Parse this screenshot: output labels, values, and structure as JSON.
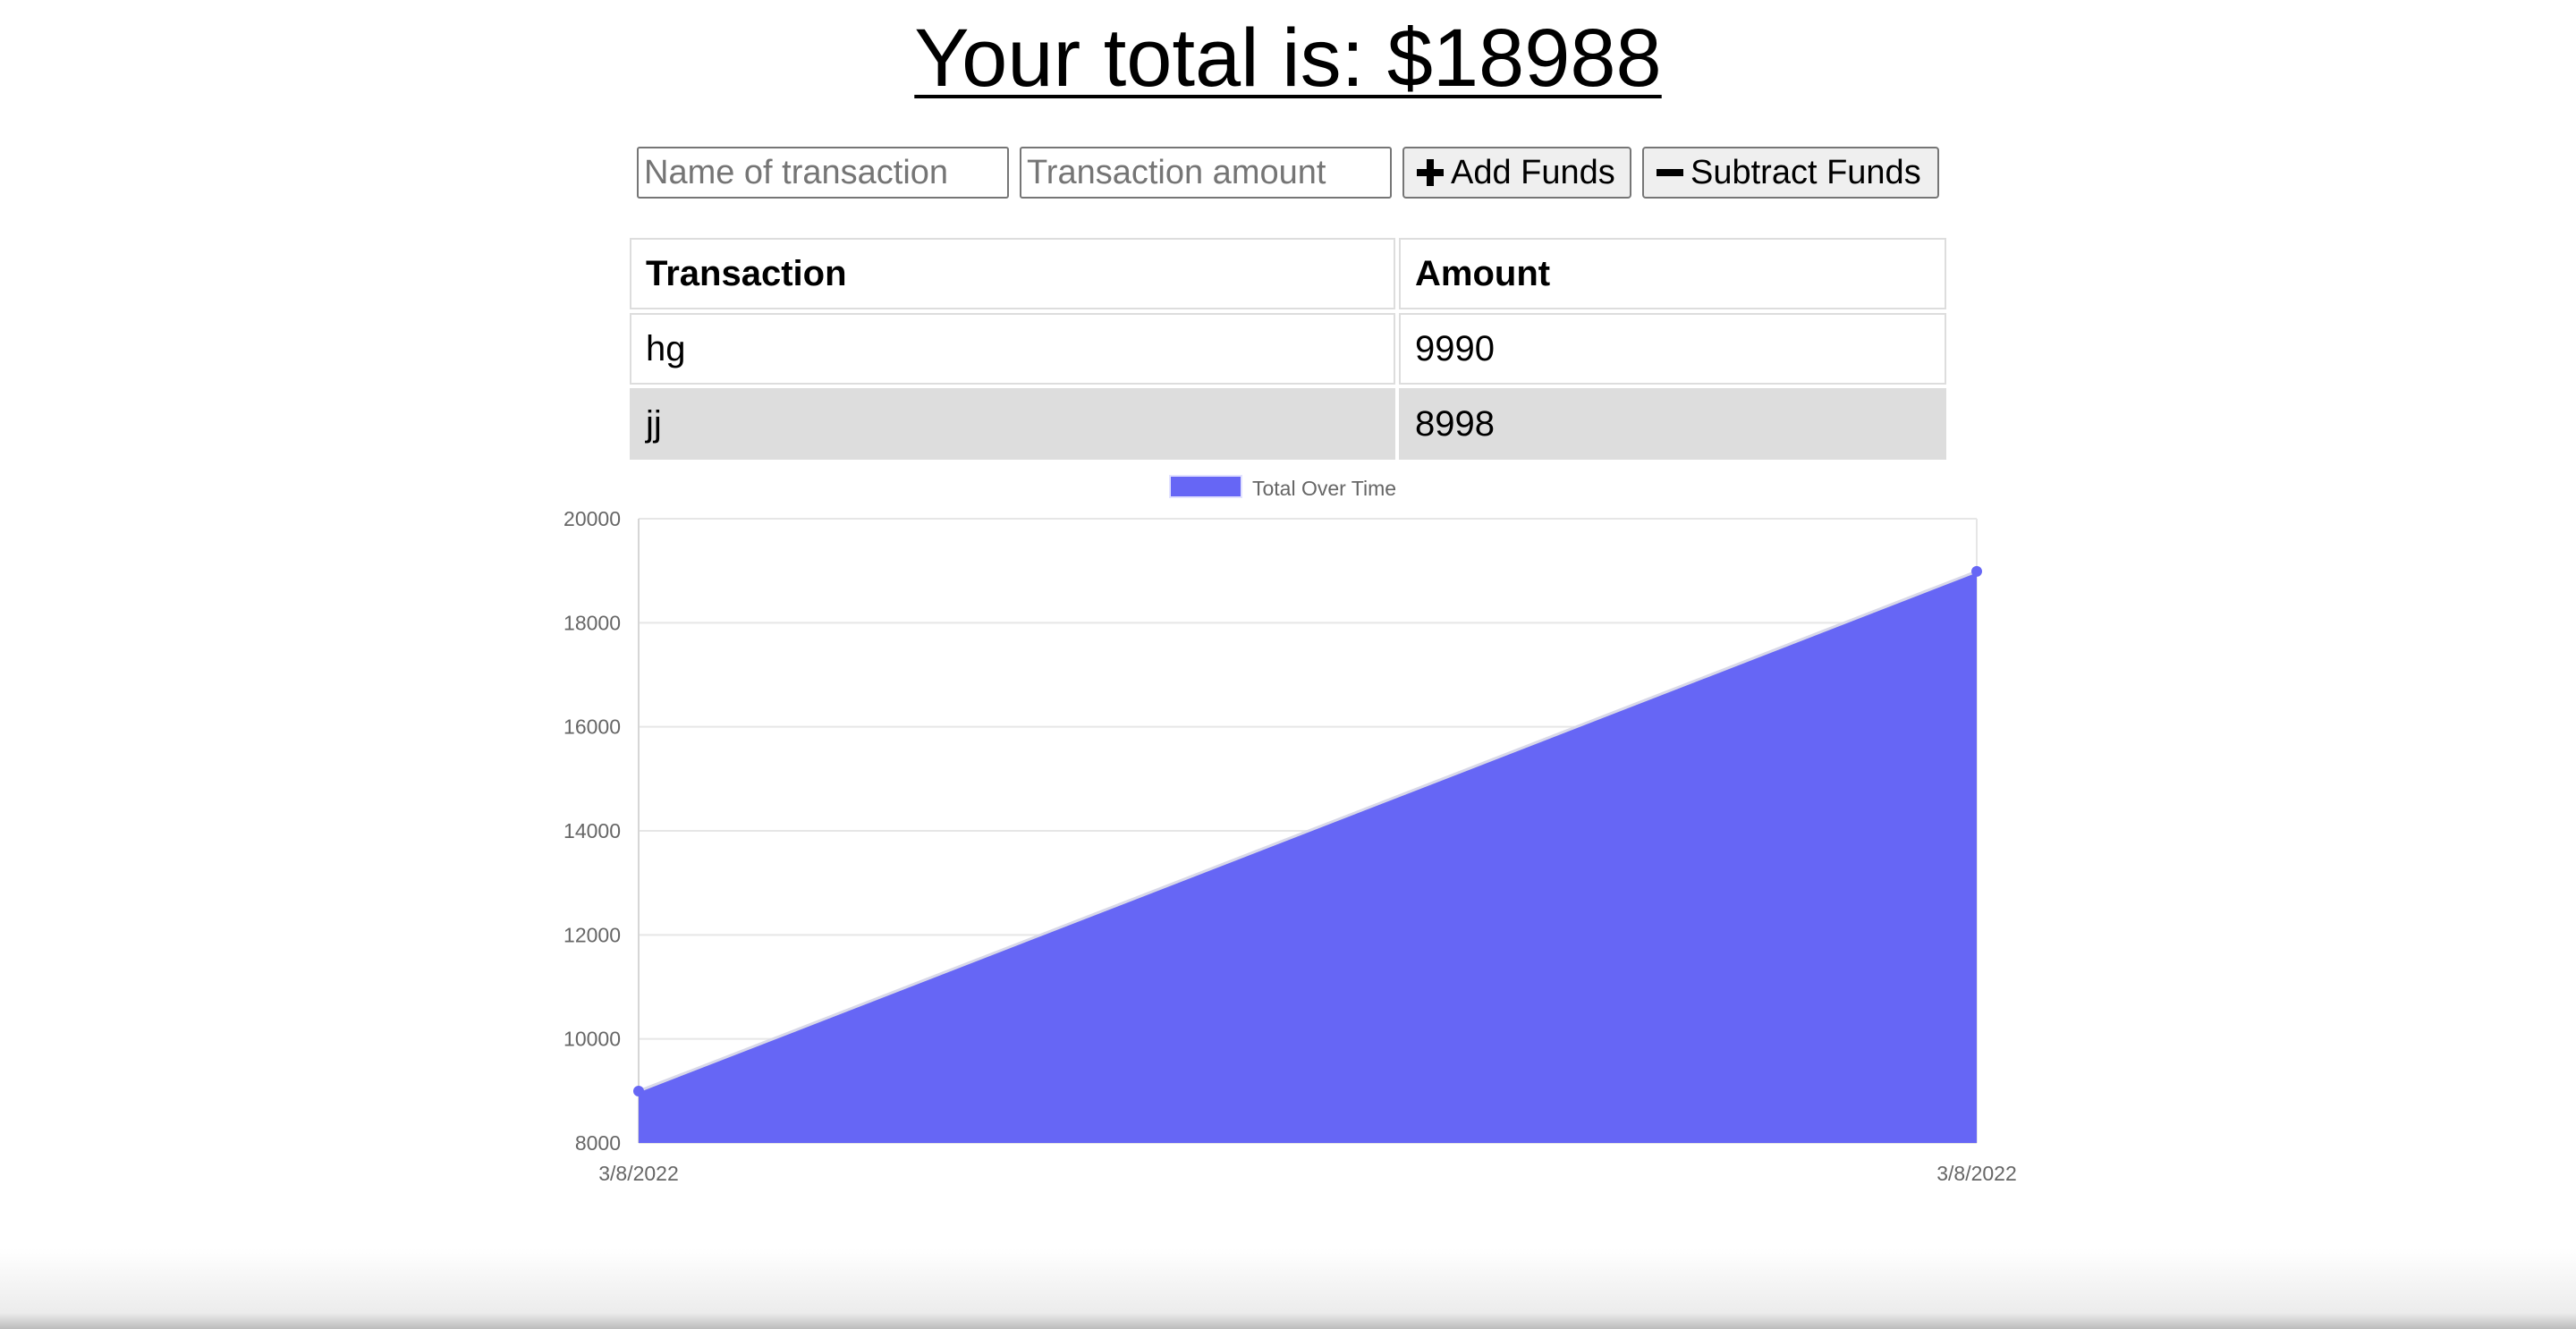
{
  "header": {
    "title": "Your total is: $18988"
  },
  "form": {
    "name_placeholder": "Name of transaction",
    "amount_placeholder": "Transaction amount",
    "add_label": "Add Funds",
    "subtract_label": "Subtract Funds"
  },
  "table": {
    "headers": [
      "Transaction",
      "Amount"
    ],
    "rows": [
      {
        "name": "hg",
        "amount": "9990"
      },
      {
        "name": "jj",
        "amount": "8998"
      }
    ]
  },
  "chart_data": {
    "type": "area",
    "title": "",
    "xlabel": "",
    "ylabel": "",
    "categories": [
      "3/8/2022",
      "3/8/2022"
    ],
    "series": [
      {
        "name": "Total Over Time",
        "values": [
          8998,
          18988
        ],
        "color": "#6666f5"
      }
    ],
    "y_ticks": [
      8000,
      10000,
      12000,
      14000,
      16000,
      18000,
      20000
    ],
    "ylim": [
      8000,
      20000
    ],
    "grid": true,
    "legend_position": "top-center"
  }
}
